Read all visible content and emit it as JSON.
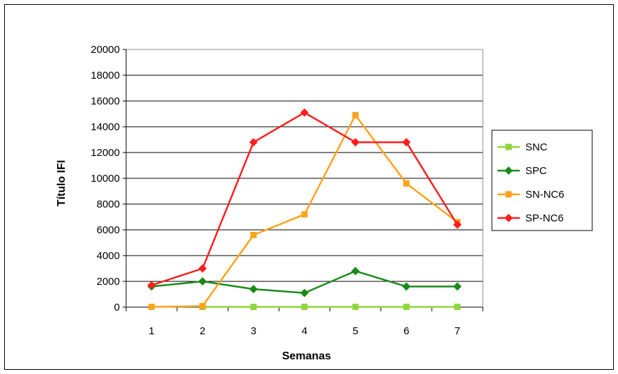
{
  "chart_data": {
    "type": "line",
    "title": "",
    "xlabel": "Semanas",
    "ylabel": "Título IFI",
    "categories": [
      "1",
      "2",
      "3",
      "4",
      "5",
      "6",
      "7"
    ],
    "ylim": [
      0,
      20000
    ],
    "yticks": [
      0,
      2000,
      4000,
      6000,
      8000,
      10000,
      12000,
      14000,
      16000,
      18000,
      20000
    ],
    "grid": "horizontal",
    "legend_position": "right",
    "series": [
      {
        "name": "SNC",
        "color": "#8ed63c",
        "marker": "square",
        "values": [
          null,
          20,
          20,
          20,
          20,
          20,
          20
        ]
      },
      {
        "name": "SPC",
        "color": "#1a8a1a",
        "marker": "diamond",
        "values": [
          1600,
          2000,
          1400,
          1100,
          2800,
          1600,
          1600
        ]
      },
      {
        "name": "SN-NC6",
        "color": "#ffa21c",
        "marker": "square",
        "values": [
          20,
          80,
          5600,
          7200,
          14900,
          9600,
          6600
        ]
      },
      {
        "name": "SP-NC6",
        "color": "#ff1e1e",
        "marker": "diamond",
        "values": [
          1700,
          3000,
          12800,
          15100,
          12800,
          12800,
          6400
        ]
      }
    ]
  }
}
